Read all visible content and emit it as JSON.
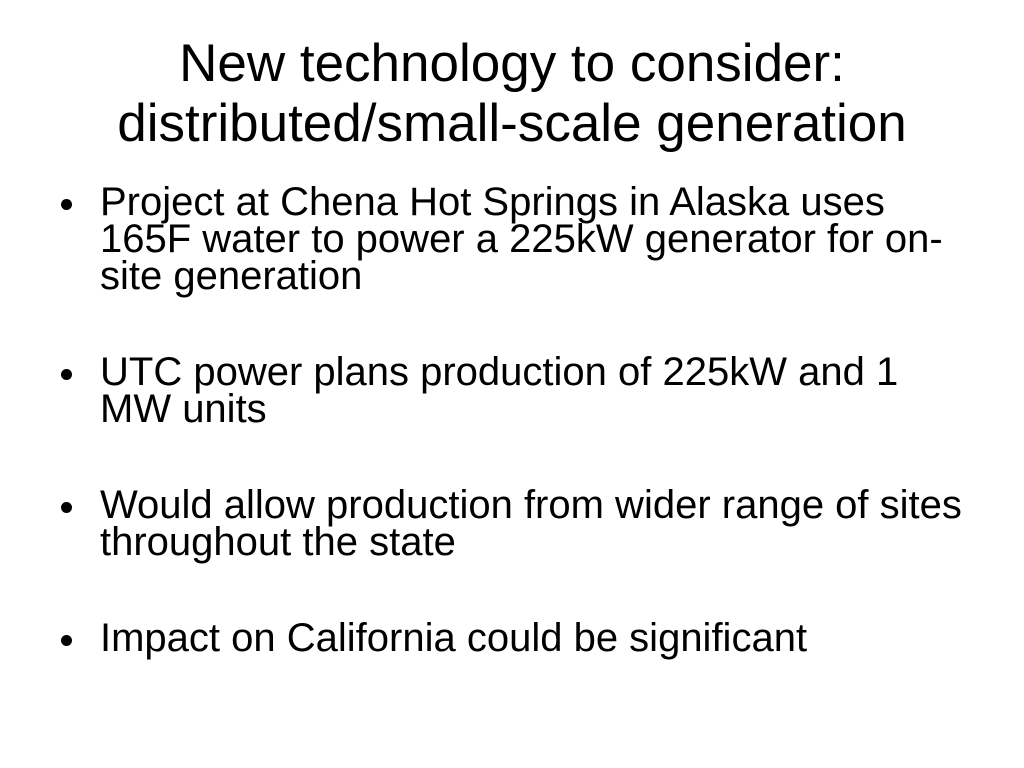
{
  "slide": {
    "background_color": "#ffffff",
    "text_color": "#000000",
    "title": {
      "lines": [
        "New technology to consider:",
        "distributed/small-scale generation"
      ]
    },
    "bullets": [
      {
        "lines": [
          "Project at Chena Hot Springs in Alaska uses",
          "165F water to power a 225kW generator for on-",
          "site generation"
        ]
      },
      {
        "lines": [
          "UTC power plans production of 225kW and 1",
          "MW units"
        ]
      },
      {
        "lines": [
          "Would allow production from wider range of sites",
          "throughout the state"
        ]
      },
      {
        "lines": [
          "Impact on California could be significant"
        ]
      }
    ]
  }
}
